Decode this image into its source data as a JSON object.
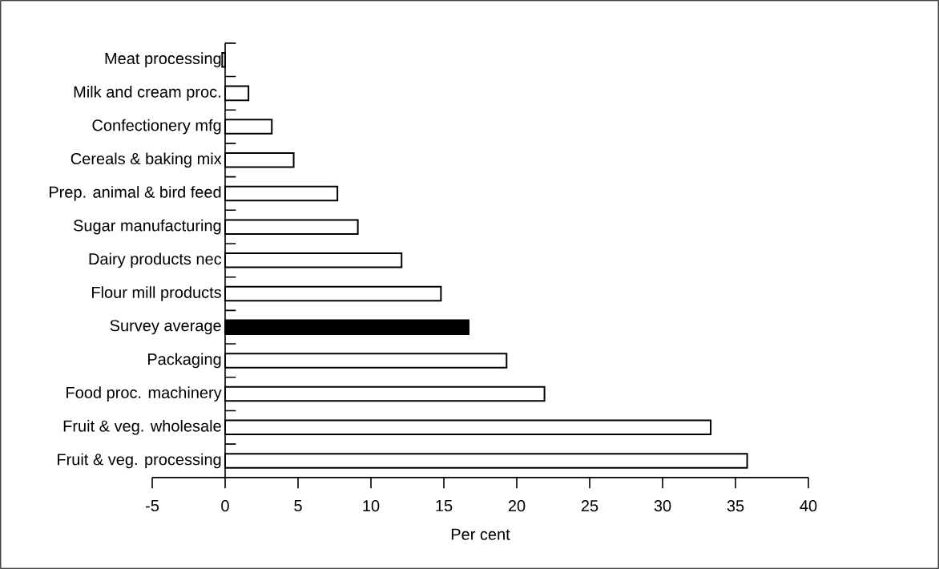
{
  "chart_data": {
    "type": "bar",
    "orientation": "horizontal",
    "xlabel": "Per cent",
    "categories": [
      "Meat processing",
      "Milk and cream proc.",
      "Confectionery mfg",
      "Cereals & baking mix",
      "Prep. animal & bird feed",
      "Sugar manufacturing",
      "Dairy products nec",
      "Flour mill products",
      "Survey average",
      "Packaging",
      "Food proc. machinery",
      "Fruit & veg. wholesale",
      "Fruit & veg. processing"
    ],
    "values": [
      -0.2,
      1.6,
      3.2,
      4.7,
      7.7,
      9.1,
      12.1,
      14.8,
      16.7,
      19.3,
      21.9,
      33.3,
      35.8
    ],
    "colors": [
      "#ffffff",
      "#ffffff",
      "#ffffff",
      "#ffffff",
      "#ffffff",
      "#ffffff",
      "#ffffff",
      "#ffffff",
      "#000000",
      "#ffffff",
      "#ffffff",
      "#ffffff",
      "#ffffff"
    ],
    "xlim": [
      -5,
      40
    ],
    "xticks": [
      -5,
      0,
      5,
      10,
      15,
      20,
      25,
      30,
      35,
      40
    ]
  }
}
